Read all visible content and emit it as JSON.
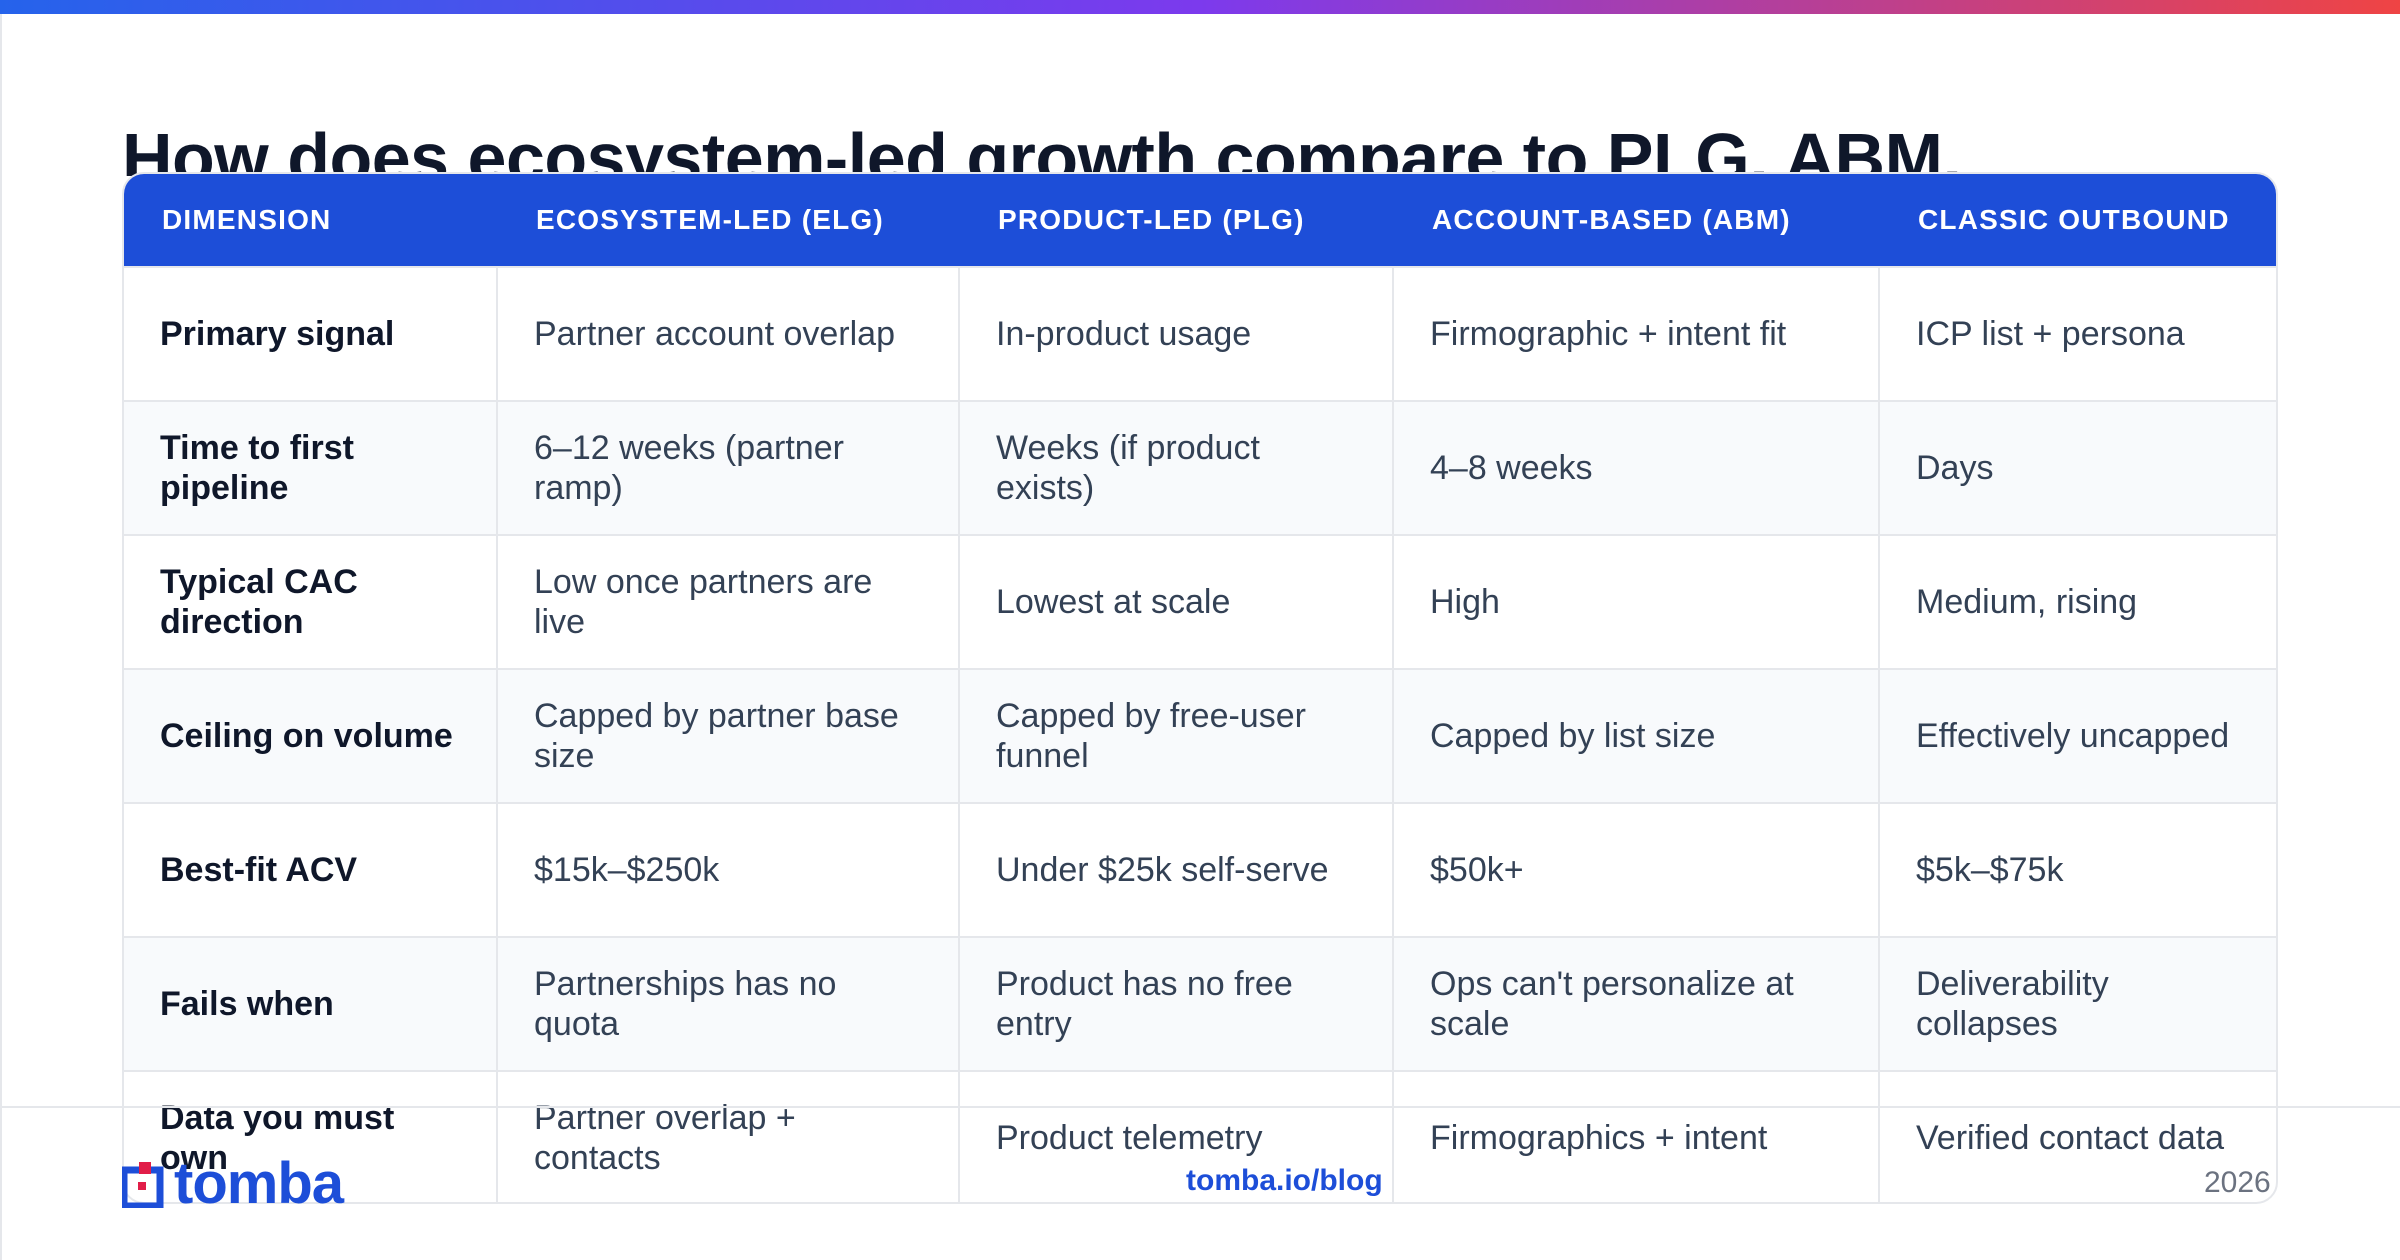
{
  "title": "How does ecosystem-led growth compare to PLG, ABM,",
  "table": {
    "headers": [
      "DIMENSION",
      "ECOSYSTEM-LED (ELG)",
      "PRODUCT-LED (PLG)",
      "ACCOUNT-BASED (ABM)",
      "CLASSIC OUTBOUND"
    ],
    "rows": [
      [
        "Primary signal",
        "Partner account overlap",
        "In-product usage",
        "Firmographic + intent fit",
        "ICP list + persona"
      ],
      [
        "Time to first pipeline",
        "6–12 weeks (partner ramp)",
        "Weeks (if product exists)",
        "4–8 weeks",
        "Days"
      ],
      [
        "Typical CAC direction",
        "Low once partners are live",
        "Lowest at scale",
        "High",
        "Medium, rising"
      ],
      [
        "Ceiling on volume",
        "Capped by partner base size",
        "Capped by free-user funnel",
        "Capped by list size",
        "Effectively uncapped"
      ],
      [
        "Best-fit ACV",
        "$15k–$250k",
        "Under $25k self-serve",
        "$50k+",
        "$5k–$75k"
      ],
      [
        "Fails when",
        "Partnerships has no quota",
        "Product has no free entry",
        "Ops can't personalize at scale",
        "Deliverability collapses"
      ],
      [
        "Data you must own",
        "Partner overlap + contacts",
        "Product telemetry",
        "Firmographics + intent",
        "Verified contact data"
      ]
    ]
  },
  "footer": {
    "logo_text": "tomba",
    "link": "tomba.io/blog",
    "year": "2026"
  },
  "colors": {
    "header_bg": "#1d4ed8",
    "accent": "#1d4ed8",
    "logo_red": "#e11d48"
  },
  "icons": {
    "logo": "tomba-logo-icon"
  }
}
